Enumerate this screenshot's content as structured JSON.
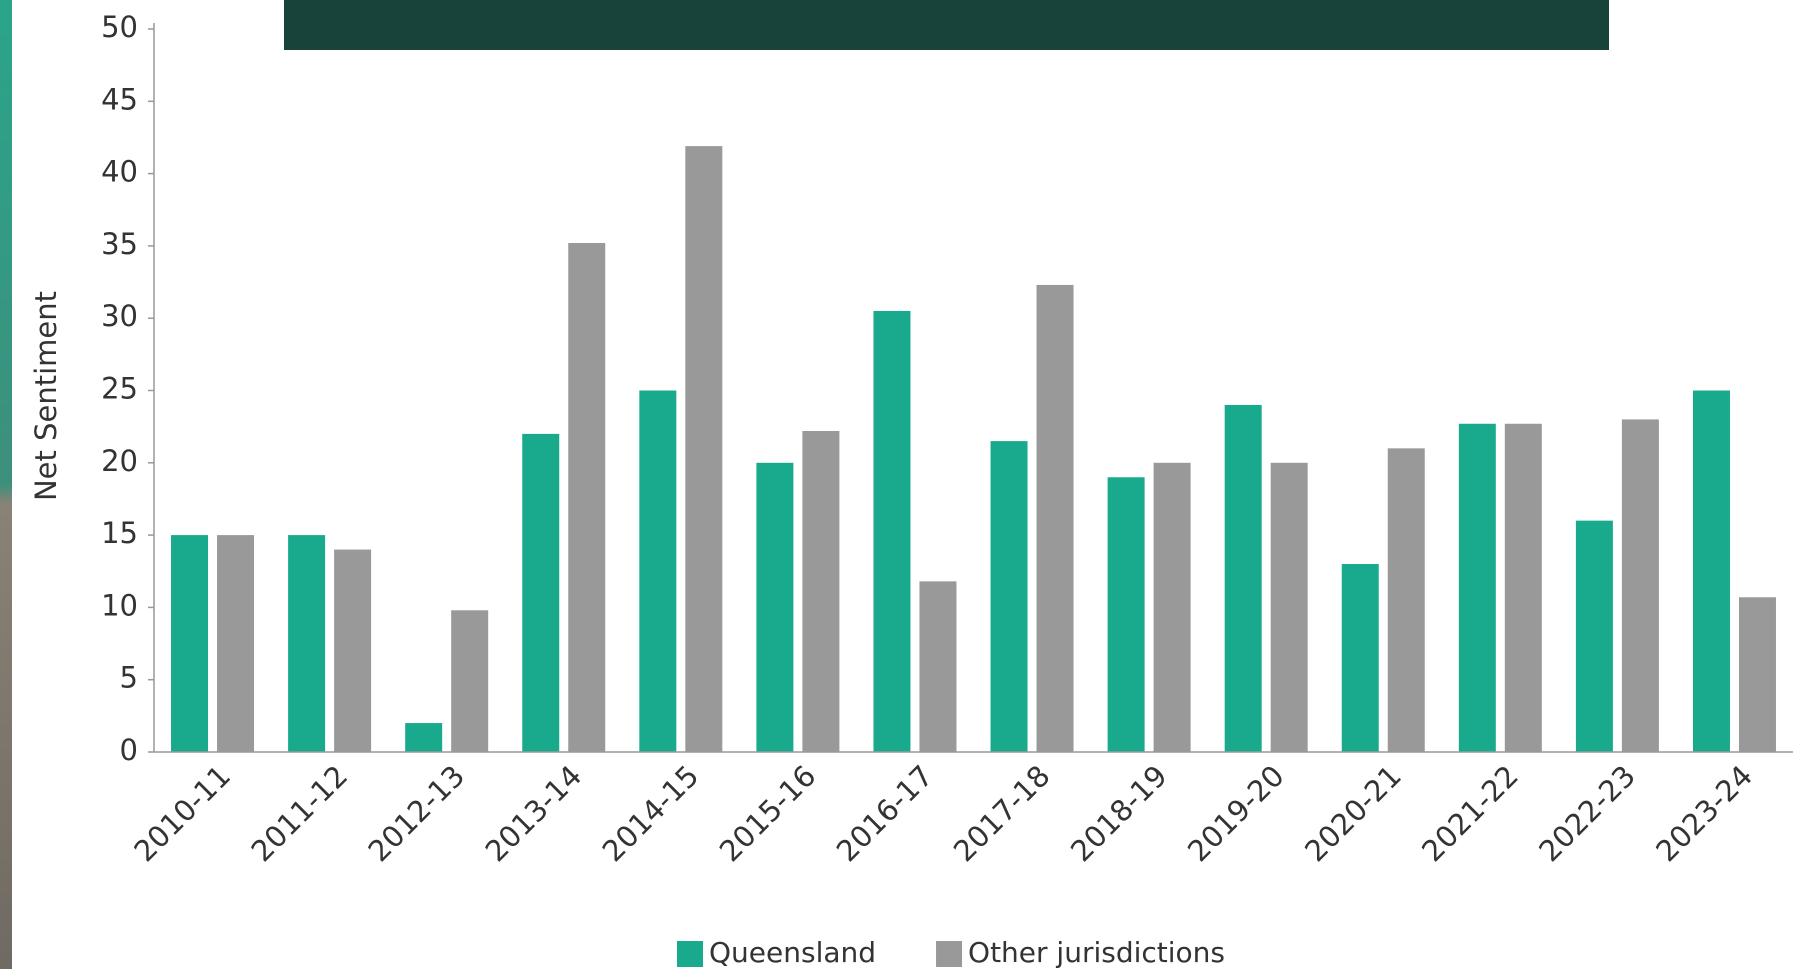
{
  "chart_data": {
    "type": "bar",
    "y_label": "Net Sentiment",
    "categories": [
      "2010-11",
      "2011-12",
      "2012-13",
      "2013-14",
      "2014-15",
      "2015-16",
      "2016-17",
      "2017-18",
      "2018-19",
      "2019-20",
      "2020-21",
      "2021-22",
      "2022-23",
      "2023-24"
    ],
    "series": [
      {
        "name": "Queensland",
        "color": "#19aa8d",
        "values": [
          15,
          15,
          2,
          22,
          25,
          20,
          30.5,
          21.5,
          19,
          24,
          13,
          22.7,
          16,
          25
        ]
      },
      {
        "name": "Other jurisdictions",
        "color": "#999999",
        "values": [
          15,
          14,
          9.8,
          35.2,
          41.9,
          22.2,
          11.8,
          32.3,
          20,
          20,
          21,
          22.7,
          23,
          10.7
        ]
      }
    ],
    "ylim": [
      0,
      50
    ],
    "yticks": [
      0,
      5,
      10,
      15,
      20,
      25,
      30,
      35,
      40,
      45,
      50
    ],
    "legend": "bottom"
  }
}
